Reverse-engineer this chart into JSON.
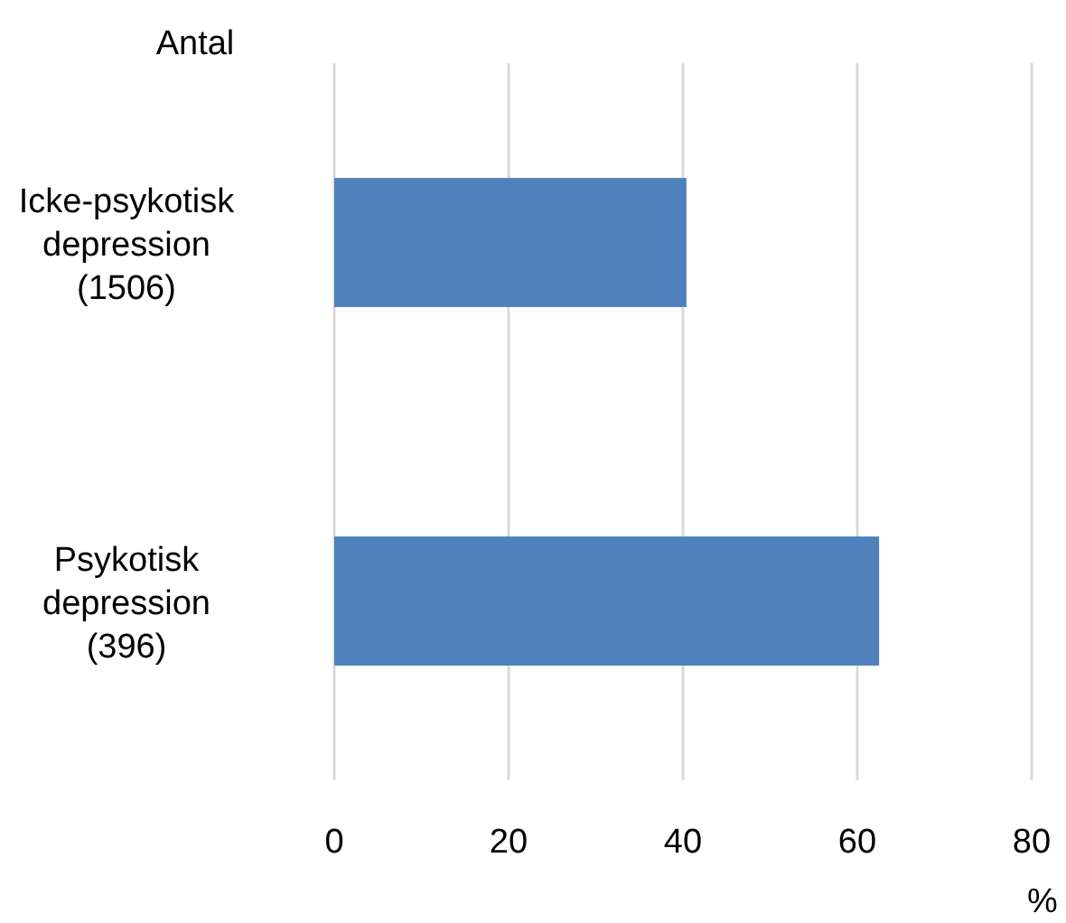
{
  "chart_data": {
    "type": "bar",
    "orientation": "horizontal",
    "categories": [
      "Icke-psykotisk depression (1506)",
      "Psykotisk depression (396)"
    ],
    "values": [
      40.4,
      62.5
    ],
    "color": "#4f81bd",
    "xlim": [
      0,
      80
    ],
    "xticks": [
      0,
      20,
      40,
      60,
      80
    ],
    "grid": "x",
    "ylabel": "Antal",
    "xlabel": "%"
  }
}
